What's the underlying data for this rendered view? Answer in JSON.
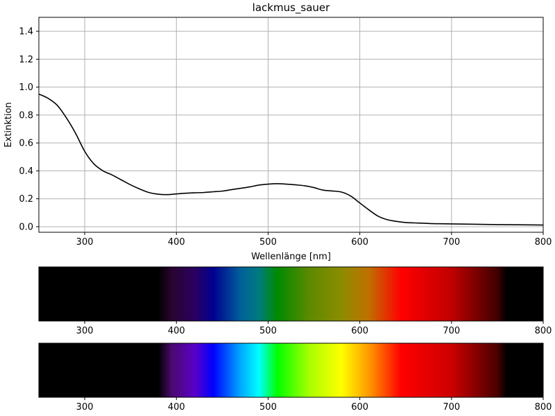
{
  "chart_data": [
    {
      "type": "line",
      "title": "lackmus_sauer",
      "xlabel": "Wellenlänge [nm]",
      "ylabel": "Extinktion",
      "xlim": [
        250,
        800
      ],
      "ylim": [
        -0.04,
        1.5
      ],
      "x_ticks": [
        "300",
        "400",
        "500",
        "600",
        "700",
        "800"
      ],
      "y_ticks": [
        "0.0",
        "0.2",
        "0.4",
        "0.6",
        "0.8",
        "1.0",
        "1.2",
        "1.4"
      ],
      "grid": true,
      "line_color": "#000000",
      "series": [
        {
          "x": [
            250,
            260,
            270,
            280,
            290,
            300,
            310,
            320,
            330,
            340,
            350,
            360,
            370,
            380,
            390,
            400,
            410,
            420,
            430,
            440,
            450,
            460,
            470,
            480,
            490,
            500,
            510,
            520,
            530,
            540,
            550,
            560,
            570,
            580,
            590,
            600,
            610,
            620,
            630,
            640,
            650,
            660,
            680,
            700,
            720,
            750,
            800
          ],
          "y": [
            0.95,
            0.92,
            0.87,
            0.78,
            0.67,
            0.54,
            0.45,
            0.4,
            0.37,
            0.335,
            0.3,
            0.27,
            0.245,
            0.233,
            0.23,
            0.235,
            0.24,
            0.243,
            0.245,
            0.25,
            0.255,
            0.265,
            0.275,
            0.285,
            0.298,
            0.305,
            0.308,
            0.305,
            0.3,
            0.293,
            0.28,
            0.262,
            0.256,
            0.248,
            0.22,
            0.17,
            0.12,
            0.075,
            0.05,
            0.038,
            0.03,
            0.027,
            0.022,
            0.02,
            0.018,
            0.015,
            0.012
          ]
        }
      ]
    },
    {
      "type": "heatmap",
      "description_visible": "absorbed spectrum bar",
      "xlim": [
        250,
        800
      ],
      "x_ticks": [
        "300",
        "400",
        "500",
        "600",
        "700",
        "800"
      ]
    },
    {
      "type": "heatmap",
      "description_visible": "visible spectrum bar",
      "xlim": [
        250,
        800
      ],
      "x_ticks": [
        "300",
        "400",
        "500",
        "600",
        "700",
        "800"
      ]
    }
  ],
  "spectrum": {
    "visible_colors": [
      {
        "nm": 380,
        "color": "#000000"
      },
      {
        "nm": 395,
        "color": "#4a0a6e"
      },
      {
        "nm": 420,
        "color": "#5a00c8"
      },
      {
        "nm": 440,
        "color": "#0000ff"
      },
      {
        "nm": 470,
        "color": "#00a8ff"
      },
      {
        "nm": 490,
        "color": "#00ffff"
      },
      {
        "nm": 510,
        "color": "#00ff00"
      },
      {
        "nm": 545,
        "color": "#a8ff00"
      },
      {
        "nm": 580,
        "color": "#ffff00"
      },
      {
        "nm": 610,
        "color": "#ff9900"
      },
      {
        "nm": 645,
        "color": "#ff0000"
      },
      {
        "nm": 700,
        "color": "#cc0000"
      },
      {
        "nm": 750,
        "color": "#4a0000"
      },
      {
        "nm": 760,
        "color": "#000000"
      }
    ],
    "absorbed_colors": [
      {
        "nm": 380,
        "color": "#000000"
      },
      {
        "nm": 395,
        "color": "#2a0430"
      },
      {
        "nm": 420,
        "color": "#2a0060"
      },
      {
        "nm": 440,
        "color": "#000090"
      },
      {
        "nm": 470,
        "color": "#00609a"
      },
      {
        "nm": 490,
        "color": "#007b80"
      },
      {
        "nm": 510,
        "color": "#008a00"
      },
      {
        "nm": 545,
        "color": "#5c8a00"
      },
      {
        "nm": 580,
        "color": "#8c8c00"
      },
      {
        "nm": 610,
        "color": "#c07000"
      },
      {
        "nm": 645,
        "color": "#ff0000"
      },
      {
        "nm": 700,
        "color": "#c00000"
      },
      {
        "nm": 750,
        "color": "#400000"
      },
      {
        "nm": 760,
        "color": "#000000"
      }
    ]
  }
}
